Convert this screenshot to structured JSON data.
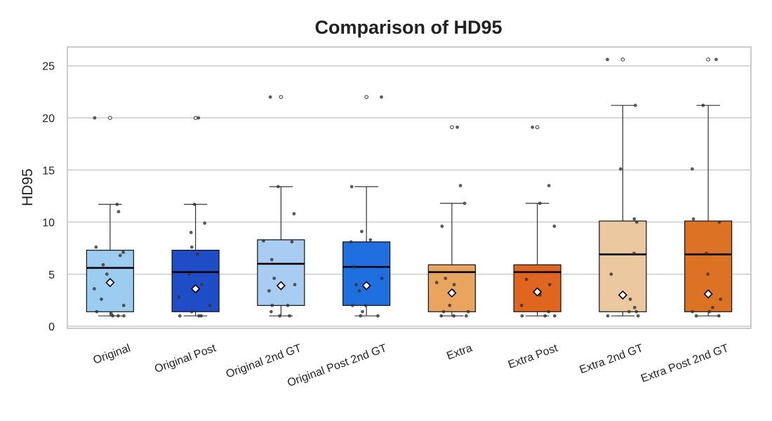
{
  "chart_data": {
    "type": "box",
    "title": "Comparison of HD95",
    "xlabel": "",
    "ylabel": "HD95",
    "ylim": [
      -0.2,
      26.8
    ],
    "yticks": [
      0,
      5,
      10,
      15,
      20,
      25
    ],
    "grid": "horizontal",
    "categories": [
      "Original",
      "Original Post",
      "Original 2nd GT",
      "Original Post 2nd GT",
      "Extra",
      "Extra Post",
      "Extra 2nd GT",
      "Extra Post 2nd GT"
    ],
    "colors": [
      "#9ccdf0",
      "#1f4dc7",
      "#a9ccf3",
      "#1f6fe0",
      "#e9a55e",
      "#e0651f",
      "#ebc8a0",
      "#dc7324"
    ],
    "series": [
      {
        "q1": 1.4,
        "median": 5.6,
        "q3": 7.3,
        "whisker_low": 1.0,
        "whisker_high": 11.7,
        "mean": 4.2,
        "outliers": [
          20.0
        ],
        "points": [
          1.0,
          1.0,
          1.0,
          1.2,
          1.4,
          2.0,
          2.6,
          3.6,
          5.0,
          5.9,
          6.8,
          7.1,
          7.6,
          11.0,
          11.7,
          20.0
        ]
      },
      {
        "q1": 1.4,
        "median": 5.2,
        "q3": 7.3,
        "whisker_low": 1.0,
        "whisker_high": 11.7,
        "mean": 3.6,
        "outliers": [
          20.0
        ],
        "points": [
          1.0,
          1.0,
          1.0,
          1.4,
          2.0,
          2.8,
          3.6,
          4.0,
          5.0,
          6.9,
          7.6,
          9.0,
          9.9,
          11.7,
          20.0
        ]
      },
      {
        "q1": 2.0,
        "median": 6.0,
        "q3": 8.3,
        "whisker_low": 1.0,
        "whisker_high": 13.4,
        "mean": 3.9,
        "outliers": [
          22.0
        ],
        "points": [
          1.0,
          1.0,
          1.4,
          2.0,
          2.0,
          3.4,
          4.0,
          4.6,
          6.4,
          8.1,
          8.2,
          10.8,
          13.4,
          22.0
        ]
      },
      {
        "q1": 2.0,
        "median": 5.7,
        "q3": 8.1,
        "whisker_low": 1.0,
        "whisker_high": 13.4,
        "mean": 3.9,
        "outliers": [
          22.0
        ],
        "points": [
          1.0,
          1.0,
          1.4,
          2.0,
          2.0,
          3.4,
          4.0,
          4.6,
          5.7,
          8.1,
          8.3,
          9.1,
          13.4,
          22.0
        ]
      },
      {
        "q1": 1.4,
        "median": 5.2,
        "q3": 5.9,
        "whisker_low": 1.0,
        "whisker_high": 11.8,
        "mean": 3.2,
        "outliers": [
          19.1
        ],
        "points": [
          1.0,
          1.0,
          1.0,
          1.4,
          1.4,
          2.0,
          3.4,
          4.0,
          4.2,
          4.6,
          9.6,
          11.8,
          13.5,
          19.1
        ]
      },
      {
        "q1": 1.4,
        "median": 5.2,
        "q3": 5.9,
        "whisker_low": 1.0,
        "whisker_high": 11.8,
        "mean": 3.3,
        "outliers": [
          19.1
        ],
        "points": [
          1.0,
          1.0,
          1.0,
          1.4,
          2.0,
          3.0,
          4.0,
          4.5,
          9.6,
          11.8,
          13.5,
          19.1
        ]
      },
      {
        "q1": 1.4,
        "median": 6.9,
        "q3": 10.1,
        "whisker_low": 1.0,
        "whisker_high": 21.2,
        "mean": 3.0,
        "outliers": [
          25.6
        ],
        "points": [
          1.0,
          1.0,
          1.4,
          1.4,
          1.8,
          2.6,
          5.0,
          7.0,
          10.0,
          10.3,
          15.1,
          21.2,
          25.6
        ]
      },
      {
        "q1": 1.4,
        "median": 6.9,
        "q3": 10.1,
        "whisker_low": 1.0,
        "whisker_high": 21.2,
        "mean": 3.1,
        "outliers": [
          25.6
        ],
        "points": [
          1.0,
          1.0,
          1.4,
          1.4,
          1.8,
          2.6,
          5.0,
          7.0,
          10.0,
          10.3,
          15.1,
          21.2,
          25.6
        ]
      }
    ]
  }
}
